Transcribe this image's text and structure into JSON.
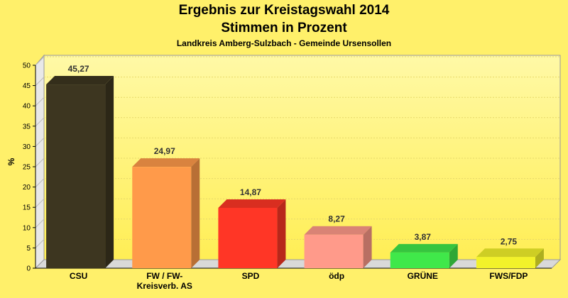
{
  "chart_data": {
    "type": "bar",
    "title": "Ergebnis zur Kreistagswahl 2014",
    "title_line2": "Stimmen in Prozent",
    "subtitle": "Landkreis Amberg-Sulzbach - Gemeinde Ursensollen",
    "ylabel": "%",
    "ylim": [
      0,
      50
    ],
    "yticks": [
      0,
      5,
      10,
      15,
      20,
      25,
      30,
      35,
      40,
      45,
      50
    ],
    "grid": true,
    "categories": [
      [
        "CSU"
      ],
      [
        "FW / FW-",
        "Kreisverb. AS"
      ],
      [
        "SPD"
      ],
      [
        "ödp"
      ],
      [
        "GRÜNE"
      ],
      [
        "FWS/FDP"
      ]
    ],
    "values": [
      45.27,
      24.97,
      14.87,
      8.27,
      3.87,
      2.75
    ],
    "value_labels": [
      "45,27",
      "24,97",
      "14,87",
      "8,27",
      "3,87",
      "2,75"
    ],
    "colors": [
      "#3d3620",
      "#ff9a4a",
      "#ff3626",
      "#ff9a8a",
      "#40e84a",
      "#f2f22a"
    ]
  }
}
